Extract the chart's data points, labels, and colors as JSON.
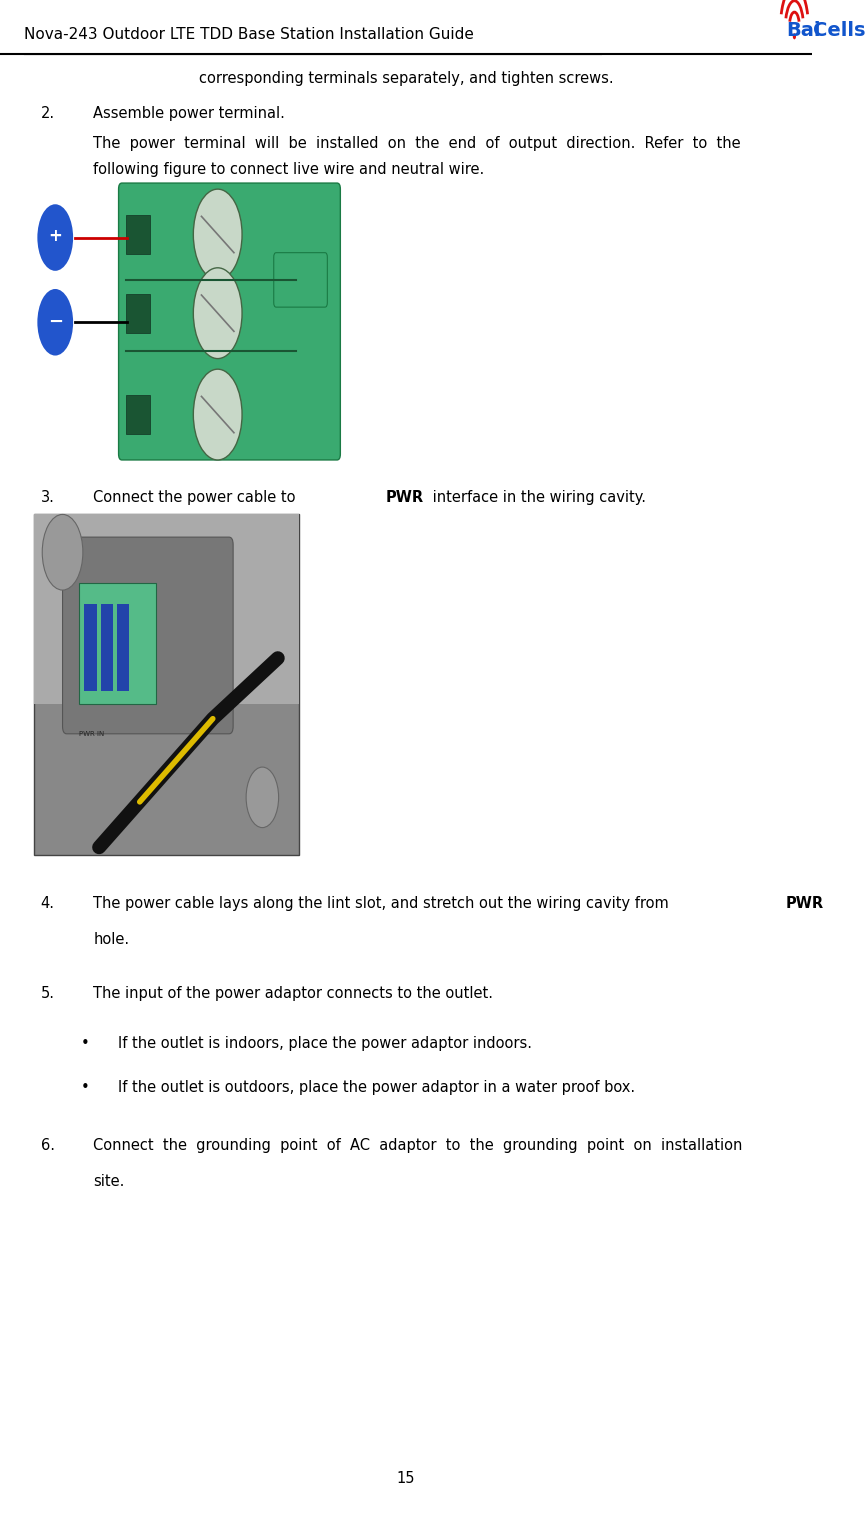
{
  "page_width": 8.67,
  "page_height": 15.13,
  "dpi": 100,
  "bg_color": "#ffffff",
  "header_title": "Nova-243 Outdoor LTE TDD Base Station Installation Guide",
  "header_title_size": 11,
  "page_number": "15",
  "body_font_size": 10.5,
  "baicells_text_color": "#1155cc",
  "plus_symbol_color": "#2255cc",
  "minus_symbol_color": "#2255cc",
  "red_line_color": "#cc0000",
  "black_line_color": "#000000",
  "intro_text": "corresponding terminals separately, and tighten screws.",
  "item2_label": "2.",
  "item2_text": "Assemble power terminal.",
  "para2_line1": "The  power  terminal  will  be  installed  on  the  end  of  output  direction.  Refer  to  the",
  "para2_line2": "following figure to connect live wire and neutral wire.",
  "item3_label": "3.",
  "item3_text_before": "Connect the power cable to ",
  "item3_bold": "PWR",
  "item3_text_after": " interface in the wiring cavity.",
  "item4_label": "4.",
  "item4_text_before": "The power cable lays along the lint slot, and stretch out the wiring cavity from ",
  "item4_bold": "PWR",
  "item4_text_after": "",
  "item4_line2": "hole.",
  "item5_label": "5.",
  "item5_text": "The input of the power adaptor connects to the outlet.",
  "bullet1": "If the outlet is indoors, place the power adaptor indoors.",
  "bullet2": "If the outlet is outdoors, place the power adaptor in a water proof box.",
  "item6_label": "6.",
  "item6_line1": "Connect  the  grounding  point  of  AC  adaptor  to  the  grounding  point  on  installation",
  "item6_line2": "site."
}
